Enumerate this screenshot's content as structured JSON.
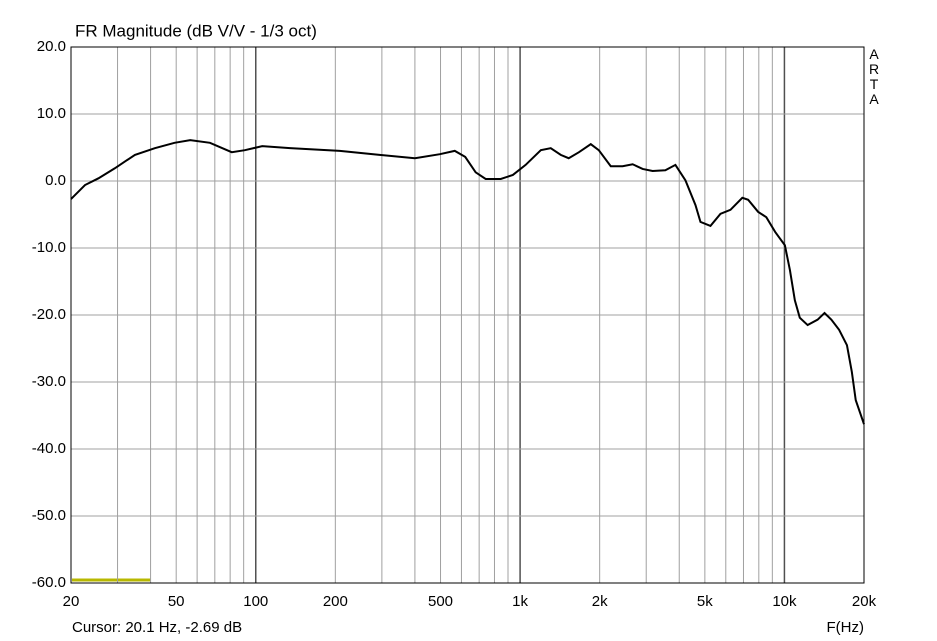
{
  "chart_data": {
    "type": "line",
    "title": "FR Magnitude (dB V/V - 1/3 oct)",
    "xlabel": "F(Hz)",
    "cursor": "Cursor: 20.1 Hz, -2.69 dB",
    "brand": "ARTA",
    "xscale": "log",
    "grid": true,
    "xlim": [
      20,
      20000
    ],
    "ylim": [
      -60,
      20
    ],
    "xticks": [
      20,
      50,
      100,
      200,
      500,
      {
        "value": 1000,
        "label": "1k"
      },
      {
        "value": 2000,
        "label": "2k"
      },
      {
        "value": 5000,
        "label": "5k"
      },
      {
        "value": 10000,
        "label": "10k"
      },
      {
        "value": 20000,
        "label": "20k"
      }
    ],
    "xgrid": [
      30,
      40,
      60,
      70,
      80,
      90,
      300,
      400,
      600,
      700,
      800,
      900,
      3000,
      4000,
      6000,
      7000,
      8000,
      9000
    ],
    "yticks": [
      {
        "value": 20,
        "label": "20.0"
      },
      {
        "value": 10,
        "label": "10.0"
      },
      {
        "value": 0,
        "label": "0.0"
      },
      {
        "value": -10,
        "label": "-10.0"
      },
      {
        "value": -20,
        "label": "-20.0"
      },
      {
        "value": -30,
        "label": "-30.0"
      },
      {
        "value": -40,
        "label": "-40.0"
      },
      {
        "value": -50,
        "label": "-50.0"
      },
      {
        "value": -60,
        "label": "-60.0"
      }
    ],
    "x": [
      20,
      22.6,
      25.4,
      29.3,
      34.9,
      41.5,
      49.3,
      56.5,
      67.1,
      81.1,
      90.9,
      105.8,
      134.7,
      208,
      294,
      400,
      497,
      566,
      620,
      679,
      741,
      845,
      939,
      1049,
      1198,
      1306,
      1425,
      1527,
      1670,
      1851,
      1985,
      2203,
      2442,
      2666,
      2908,
      3172,
      3544,
      3869,
      4222,
      4608,
      4812,
      5250,
      5728,
      6251,
      6930,
      7290,
      7950,
      8540,
      9225,
      10040,
      10490,
      10950,
      11430,
      12240,
      13350,
      14180,
      15050,
      16100,
      17240,
      17990,
      18610,
      20000
    ],
    "series": [
      {
        "color": "#000000",
        "values": [
          -2.7,
          -0.6,
          0.4,
          1.9,
          3.9,
          4.9,
          5.7,
          6.1,
          5.7,
          4.3,
          4.6,
          5.2,
          4.9,
          4.5,
          3.9,
          3.4,
          4.0,
          4.5,
          3.6,
          1.3,
          0.3,
          0.3,
          0.9,
          2.4,
          4.6,
          4.9,
          3.9,
          3.4,
          4.3,
          5.5,
          4.6,
          2.2,
          2.2,
          2.5,
          1.8,
          1.5,
          1.6,
          2.4,
          0.1,
          -3.6,
          -6.1,
          -6.7,
          -4.9,
          -4.3,
          -2.5,
          -2.8,
          -4.6,
          -5.4,
          -7.6,
          -9.6,
          -13.3,
          -17.8,
          -20.4,
          -21.5,
          -20.7,
          -19.7,
          -20.7,
          -22.2,
          -24.5,
          -28.5,
          -32.7,
          -36.3
        ]
      }
    ]
  }
}
